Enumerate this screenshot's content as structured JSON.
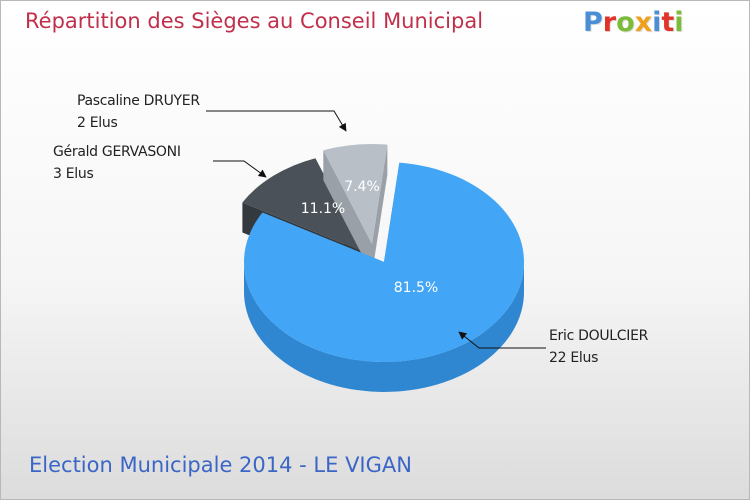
{
  "title": "Répartition des Sièges au Conseil Municipal",
  "brand": {
    "letters": [
      "P",
      "r",
      "o",
      "x",
      "i",
      "t",
      "i"
    ],
    "colors": [
      "#4a8fd6",
      "#e0342b",
      "#7dbb3b",
      "#f0a020",
      "#4a8fd6",
      "#e0342b",
      "#7dbb3b"
    ]
  },
  "subtitle": "Election Municipale 2014 - LE VIGAN",
  "chart_data": {
    "type": "pie",
    "title": "Répartition des Sièges au Conseil Municipal",
    "slices": [
      {
        "name": "Eric DOULCIER",
        "seats_label": "22 Elus",
        "seats": 22,
        "percent_label": "81.5%",
        "percent": 81.5,
        "color": "#42a5f5",
        "side_color": "#2f86d1"
      },
      {
        "name": "Gérald GERVASONI",
        "seats_label": "3 Elus",
        "seats": 3,
        "percent_label": "11.1%",
        "percent": 11.1,
        "color": "#4b5158",
        "side_color": "#34393e"
      },
      {
        "name": "Pascaline DRUYER",
        "seats_label": "2 Elus",
        "seats": 2,
        "percent_label": "7.4%",
        "percent": 7.4,
        "color": "#b9bfc7",
        "side_color": "#9aa0a7"
      }
    ]
  }
}
